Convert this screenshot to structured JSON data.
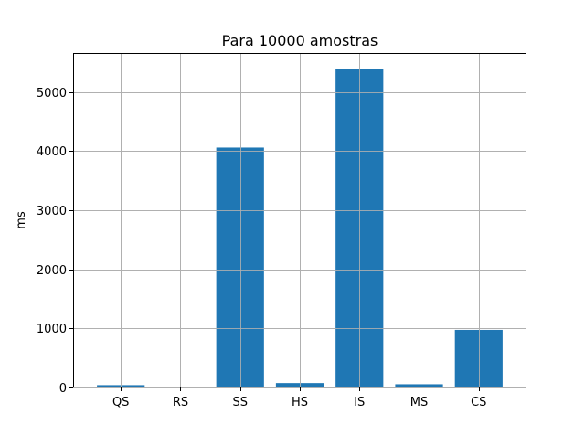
{
  "chart_data": {
    "type": "bar",
    "title": "Para 10000 amostras",
    "xlabel": "",
    "ylabel": "ms",
    "categories": [
      "QS",
      "RS",
      "SS",
      "HS",
      "IS",
      "MS",
      "CS"
    ],
    "values": [
      40,
      15,
      4060,
      75,
      5390,
      55,
      975
    ],
    "ylim": [
      0,
      5660
    ],
    "yticks": [
      0,
      1000,
      2000,
      3000,
      4000,
      5000
    ],
    "grid": true,
    "bar_color": "#1f77b4",
    "grid_color": "#b0b0b0"
  }
}
